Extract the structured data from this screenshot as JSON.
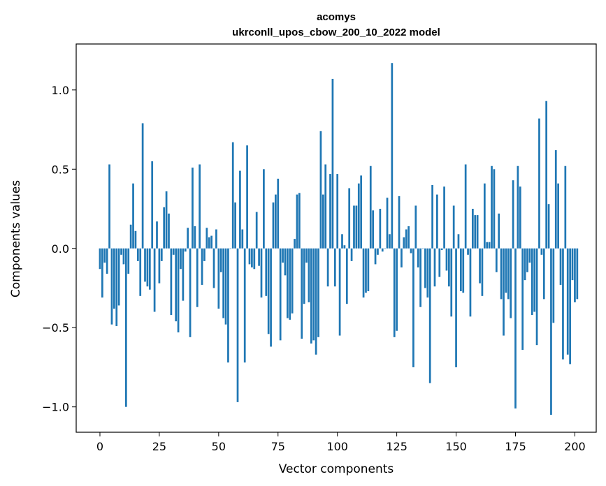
{
  "chart_data": {
    "type": "bar",
    "title": "acomys",
    "subtitle": "ukrconll_upos_cbow_200_10_2022 model",
    "xlabel": "Vector components",
    "ylabel": "Components values",
    "xlim": [
      -10,
      209
    ],
    "ylim": [
      -1.16,
      1.29
    ],
    "xticks": [
      0,
      25,
      50,
      75,
      100,
      125,
      150,
      175,
      200
    ],
    "xtick_labels": [
      "0",
      "25",
      "50",
      "75",
      "100",
      "125",
      "150",
      "175",
      "200"
    ],
    "yticks": [
      -1.0,
      -0.5,
      0.0,
      0.5,
      1.0
    ],
    "ytick_labels": [
      "−1.0",
      "−0.5",
      "0.0",
      "0.5",
      "1.0"
    ],
    "bar_color": "#1f77b4",
    "grid": false,
    "values": [
      -0.13,
      -0.31,
      -0.09,
      -0.16,
      0.53,
      -0.48,
      -0.38,
      -0.49,
      -0.36,
      -0.04,
      -0.1,
      -1.0,
      -0.16,
      0.15,
      0.41,
      0.11,
      -0.08,
      -0.3,
      0.79,
      -0.21,
      -0.24,
      -0.26,
      0.55,
      -0.4,
      0.17,
      -0.22,
      -0.08,
      0.26,
      0.36,
      0.22,
      -0.42,
      -0.04,
      -0.46,
      -0.53,
      -0.13,
      -0.33,
      -0.02,
      0.13,
      -0.56,
      0.51,
      0.14,
      -0.37,
      0.53,
      -0.23,
      -0.08,
      0.13,
      0.07,
      0.08,
      -0.25,
      0.12,
      -0.38,
      -0.15,
      -0.44,
      -0.48,
      -0.72,
      0.0,
      0.67,
      0.29,
      -0.97,
      0.49,
      0.12,
      -0.72,
      0.65,
      -0.1,
      -0.12,
      -0.13,
      0.23,
      -0.11,
      -0.31,
      0.5,
      -0.3,
      -0.54,
      -0.62,
      0.29,
      0.34,
      0.44,
      -0.58,
      -0.09,
      -0.17,
      -0.44,
      -0.45,
      -0.41,
      0.06,
      0.34,
      0.35,
      -0.57,
      -0.35,
      -0.09,
      -0.34,
      -0.6,
      -0.58,
      -0.67,
      -0.56,
      0.74,
      0.34,
      0.53,
      -0.24,
      0.47,
      1.07,
      -0.24,
      0.47,
      -0.55,
      0.09,
      0.02,
      -0.35,
      0.38,
      -0.08,
      0.27,
      0.27,
      0.41,
      0.46,
      -0.31,
      -0.28,
      -0.27,
      0.52,
      0.24,
      -0.1,
      -0.04,
      0.25,
      -0.02,
      0.0,
      0.32,
      0.09,
      1.17,
      -0.56,
      -0.52,
      0.33,
      -0.12,
      0.07,
      0.12,
      0.14,
      -0.03,
      -0.75,
      0.27,
      -0.12,
      -0.37,
      0.0,
      -0.25,
      -0.31,
      -0.85,
      0.4,
      -0.24,
      0.34,
      -0.18,
      -0.01,
      0.39,
      -0.14,
      -0.24,
      -0.43,
      0.27,
      -0.75,
      0.09,
      -0.27,
      -0.28,
      0.53,
      -0.04,
      -0.43,
      0.25,
      0.21,
      0.21,
      -0.22,
      -0.3,
      0.41,
      0.04,
      0.04,
      0.52,
      0.5,
      -0.15,
      0.22,
      -0.32,
      -0.55,
      -0.28,
      -0.32,
      -0.44,
      0.43,
      -1.01,
      0.52,
      0.39,
      -0.64,
      -0.2,
      -0.15,
      -0.09,
      -0.42,
      -0.4,
      -0.61,
      0.82,
      -0.04,
      -0.32,
      0.93,
      0.28,
      -1.05,
      -0.47,
      0.62,
      0.41,
      -0.23,
      -0.7,
      0.52,
      -0.67,
      -0.73,
      -0.2,
      -0.34,
      -0.32
    ]
  }
}
